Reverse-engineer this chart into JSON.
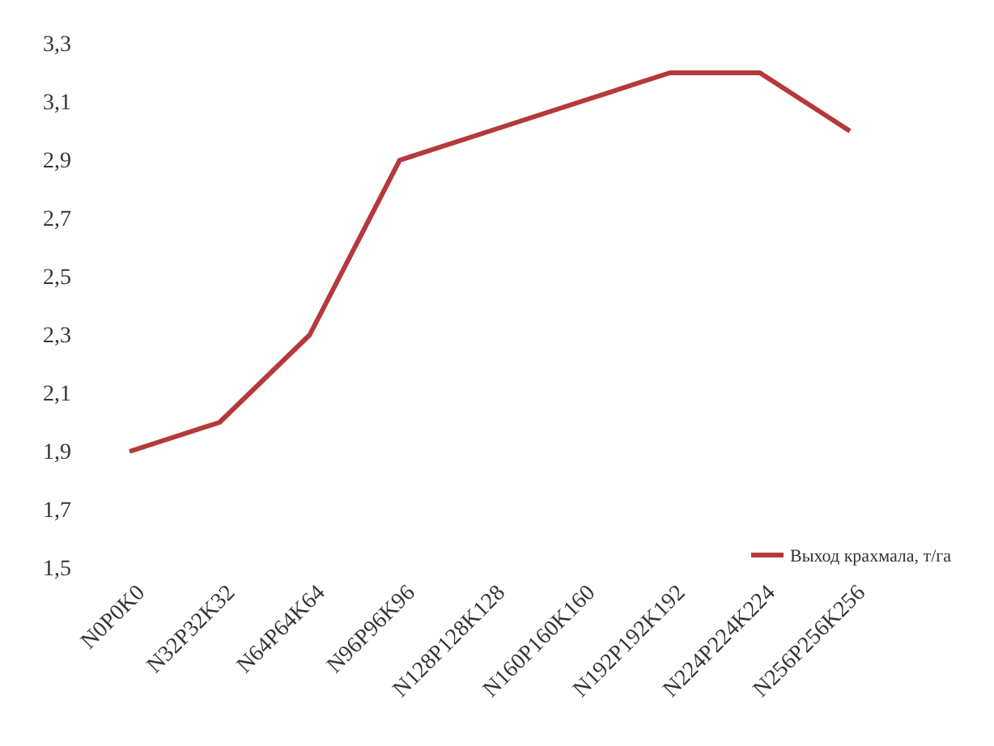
{
  "chart_data": {
    "type": "line",
    "categories": [
      "N0P0K0",
      "N32P32K32",
      "N64P64K64",
      "N96P96K96",
      "N128P128K128",
      "N160P160K160",
      "N192P192K192",
      "N224P224K224",
      "N256P256K256"
    ],
    "series": [
      {
        "name": "Выход крахмала, т/га",
        "color": "#b5393c",
        "values": [
          1.9,
          2.0,
          2.3,
          2.9,
          3.0,
          3.1,
          3.2,
          3.2,
          3.0
        ]
      }
    ],
    "ylim": [
      1.5,
      3.3
    ],
    "yticks": [
      {
        "value": 1.5,
        "label": "1,5"
      },
      {
        "value": 1.7,
        "label": "1,7"
      },
      {
        "value": 1.9,
        "label": "1,9"
      },
      {
        "value": 2.1,
        "label": "2,1"
      },
      {
        "value": 2.3,
        "label": "2,3"
      },
      {
        "value": 2.5,
        "label": "2,5"
      },
      {
        "value": 2.7,
        "label": "2,7"
      },
      {
        "value": 2.9,
        "label": "2,9"
      },
      {
        "value": 3.1,
        "label": "3,1"
      },
      {
        "value": 3.3,
        "label": "3,3"
      }
    ],
    "grid": false,
    "legend": "right",
    "marker": "none",
    "line_style": "solid"
  }
}
